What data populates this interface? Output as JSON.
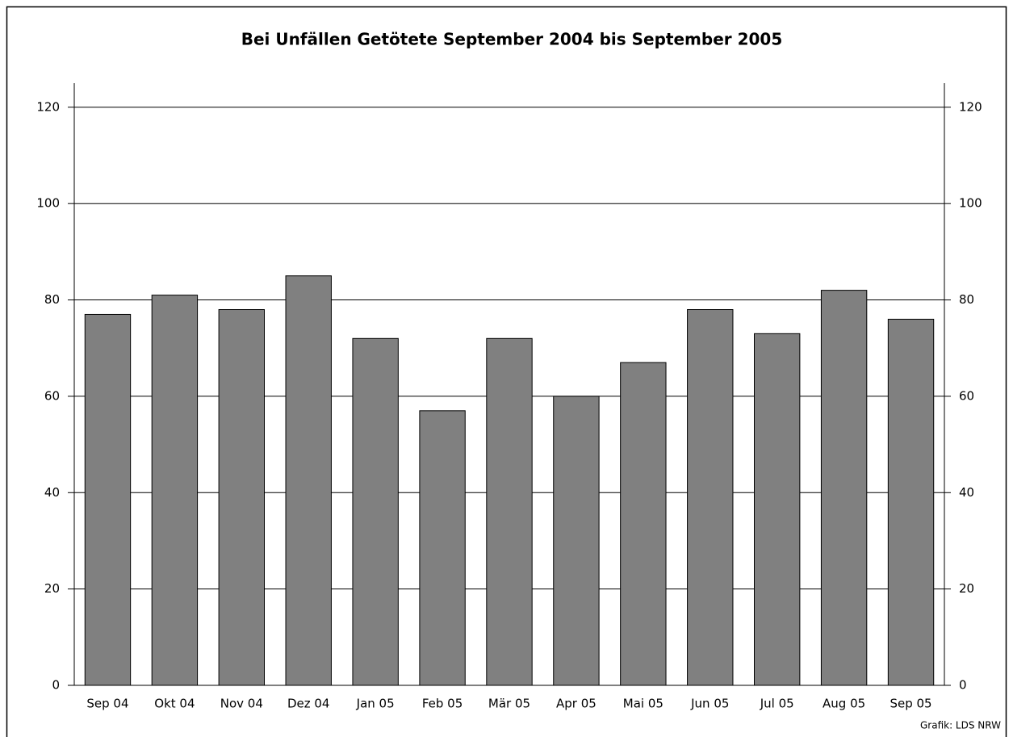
{
  "chart_data": {
    "type": "bar",
    "title": "Bei Unfällen Getötete September 2004 bis September 2005",
    "categories": [
      "Sep 04",
      "Okt 04",
      "Nov 04",
      "Dez 04",
      "Jan 05",
      "Feb 05",
      "Mär 05",
      "Apr 05",
      "Mai 05",
      "Jun 05",
      "Jul 05",
      "Aug 05",
      "Sep 05"
    ],
    "values": [
      77,
      81,
      78,
      85,
      72,
      57,
      72,
      60,
      67,
      78,
      73,
      82,
      76
    ],
    "color": "#808080",
    "ylim": [
      0,
      125
    ],
    "yticks": [
      0,
      20,
      40,
      60,
      80,
      100,
      120
    ],
    "y2lim": [
      0,
      125
    ],
    "y2ticks": [
      0,
      20,
      40,
      60,
      80,
      100,
      120
    ],
    "grid": true,
    "source": "Grafik: LDS NRW"
  }
}
